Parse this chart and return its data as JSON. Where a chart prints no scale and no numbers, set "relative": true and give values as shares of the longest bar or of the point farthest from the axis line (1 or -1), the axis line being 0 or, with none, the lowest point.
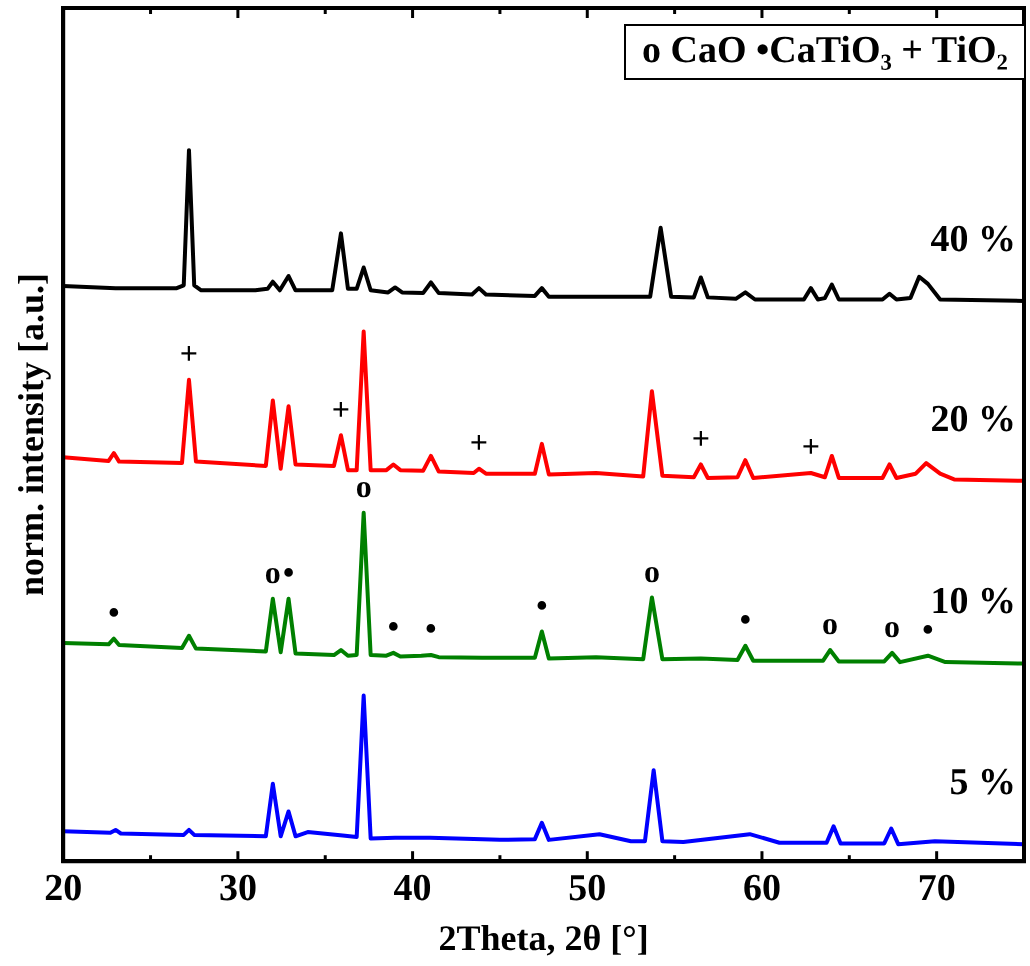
{
  "chart_data": {
    "type": "line",
    "relative": true,
    "xlabel": "2Theta, 2θ [°]",
    "ylabel": "norm. intensity [a.u.]",
    "xlim": [
      20,
      75
    ],
    "xticks": [
      20,
      {
        "value": 25,
        "label": null
      },
      30,
      {
        "value": 35,
        "label": null
      },
      40,
      {
        "value": 45,
        "label": null
      },
      50,
      {
        "value": 55,
        "label": null
      },
      60,
      {
        "value": 65,
        "label": null
      },
      70,
      {
        "value": 75,
        "label": null
      }
    ],
    "tick_labels": "x",
    "grid": false,
    "legend": false,
    "marker": "none",
    "line_style": "solid",
    "series": [
      {
        "name": "40 %",
        "color": "#000000",
        "x": [
          20,
          23,
          26.5,
          26.9,
          27.2,
          27.5,
          27.9,
          31,
          31.7,
          32.0,
          32.4,
          32.9,
          33.3,
          35.4,
          35.9,
          36.3,
          36.8,
          37.2,
          37.6,
          38.6,
          39.0,
          39.4,
          40.6,
          41.05,
          41.5,
          43.4,
          43.8,
          44.2,
          47.0,
          47.4,
          47.8,
          53.6,
          54.2,
          54.8,
          56.1,
          56.5,
          56.9,
          58.5,
          59.05,
          59.6,
          62.4,
          62.8,
          63.2,
          63.6,
          64.0,
          64.4,
          66.9,
          67.3,
          67.7,
          68.5,
          69.0,
          69.5,
          70.2,
          75
        ],
        "values": [
          0.809,
          0.806,
          0.806,
          0.81,
          1.0,
          0.81,
          0.803,
          0.803,
          0.805,
          0.815,
          0.803,
          0.823,
          0.803,
          0.803,
          0.883,
          0.805,
          0.805,
          0.835,
          0.803,
          0.8,
          0.807,
          0.8,
          0.799,
          0.814,
          0.799,
          0.797,
          0.806,
          0.797,
          0.795,
          0.806,
          0.794,
          0.794,
          0.891,
          0.794,
          0.793,
          0.821,
          0.793,
          0.791,
          0.8,
          0.79,
          0.79,
          0.806,
          0.79,
          0.792,
          0.811,
          0.79,
          0.79,
          0.798,
          0.79,
          0.792,
          0.822,
          0.812,
          0.79,
          0.788
        ]
      },
      {
        "name": "20 %",
        "color": "#ff0000",
        "x": [
          20,
          22.6,
          22.9,
          23.2,
          26.8,
          27.2,
          27.6,
          31.6,
          32.0,
          32.45,
          32.9,
          33.3,
          35.5,
          35.9,
          36.3,
          36.8,
          37.2,
          37.6,
          38.5,
          38.9,
          39.3,
          40.6,
          41.05,
          41.5,
          43.5,
          43.8,
          44.2,
          47.0,
          47.4,
          47.8,
          50.5,
          53.2,
          53.7,
          54.3,
          56.1,
          56.5,
          56.9,
          58.6,
          59.05,
          59.5,
          62.8,
          63.6,
          64.0,
          64.4,
          66.9,
          67.3,
          67.7,
          68.8,
          69.4,
          70.2,
          71,
          75
        ],
        "values": [
          0.568,
          0.563,
          0.574,
          0.562,
          0.56,
          0.677,
          0.562,
          0.556,
          0.648,
          0.552,
          0.64,
          0.558,
          0.556,
          0.599,
          0.55,
          0.55,
          0.745,
          0.55,
          0.55,
          0.558,
          0.55,
          0.549,
          0.57,
          0.548,
          0.546,
          0.552,
          0.545,
          0.545,
          0.587,
          0.544,
          0.546,
          0.541,
          0.661,
          0.542,
          0.54,
          0.558,
          0.539,
          0.54,
          0.564,
          0.539,
          0.546,
          0.54,
          0.57,
          0.539,
          0.539,
          0.558,
          0.539,
          0.545,
          0.56,
          0.545,
          0.537,
          0.535
        ]
      },
      {
        "name": "10 %",
        "color": "#008000",
        "x": [
          20,
          22.6,
          22.9,
          23.2,
          26.8,
          27.2,
          27.6,
          31.6,
          32.0,
          32.45,
          32.9,
          33.3,
          35.5,
          35.9,
          36.3,
          36.8,
          37.2,
          37.6,
          38.5,
          38.9,
          39.3,
          40.5,
          41.05,
          41.5,
          44,
          47.0,
          47.4,
          47.8,
          50.5,
          53.2,
          53.7,
          54.3,
          56.5,
          58.6,
          59.05,
          59.5,
          63.5,
          63.9,
          64.4,
          67.0,
          67.45,
          67.9,
          69.5,
          70.5,
          75
        ],
        "values": [
          0.307,
          0.305,
          0.313,
          0.304,
          0.3,
          0.317,
          0.299,
          0.295,
          0.369,
          0.294,
          0.369,
          0.292,
          0.29,
          0.297,
          0.289,
          0.29,
          0.49,
          0.29,
          0.289,
          0.293,
          0.288,
          0.289,
          0.29,
          0.287,
          0.286,
          0.286,
          0.323,
          0.285,
          0.287,
          0.284,
          0.371,
          0.284,
          0.285,
          0.283,
          0.303,
          0.282,
          0.282,
          0.297,
          0.281,
          0.281,
          0.293,
          0.28,
          0.289,
          0.28,
          0.278
        ]
      },
      {
        "name": "5 %",
        "color": "#0000ff",
        "x": [
          20,
          22.7,
          23.0,
          23.3,
          26.9,
          27.2,
          27.5,
          31.6,
          32.0,
          32.45,
          32.9,
          33.3,
          34,
          36,
          36.8,
          37.2,
          37.6,
          39,
          41,
          45,
          47.0,
          47.4,
          47.8,
          50.7,
          52.5,
          53.3,
          53.8,
          54.3,
          55.5,
          59.3,
          61,
          63.7,
          64.1,
          64.5,
          67.0,
          67.4,
          67.8,
          69.9,
          75
        ],
        "values": [
          0.042,
          0.04,
          0.044,
          0.039,
          0.037,
          0.044,
          0.037,
          0.035,
          0.109,
          0.035,
          0.07,
          0.035,
          0.041,
          0.036,
          0.034,
          0.233,
          0.032,
          0.033,
          0.033,
          0.03,
          0.031,
          0.054,
          0.03,
          0.038,
          0.028,
          0.028,
          0.128,
          0.028,
          0.027,
          0.038,
          0.026,
          0.026,
          0.049,
          0.025,
          0.025,
          0.046,
          0.024,
          0.028,
          0.024
        ]
      }
    ],
    "annotations": [
      "o CaO  •CaTiO₃ + TiO₂",
      {
        "text": "+",
        "x": 27.2,
        "y": 0.677
      },
      {
        "text": "+",
        "x": 35.9,
        "y": 0.599
      },
      {
        "text": "+",
        "x": 43.8,
        "y": 0.552
      },
      {
        "text": "+",
        "x": 56.5,
        "y": 0.558
      },
      {
        "text": "+",
        "x": 62.8,
        "y": 0.546
      },
      {
        "text": "o",
        "x": 37.2,
        "y": 0.49
      },
      {
        "text": "o",
        "x": 32.0,
        "y": 0.369
      },
      {
        "text": "•",
        "x": 32.9,
        "y": 0.369
      },
      {
        "text": "•",
        "x": 22.9,
        "y": 0.313
      },
      {
        "text": "•",
        "x": 38.9,
        "y": 0.293
      },
      {
        "text": "•",
        "x": 41.05,
        "y": 0.29
      },
      {
        "text": "•",
        "x": 47.4,
        "y": 0.323
      },
      {
        "text": "o",
        "x": 53.7,
        "y": 0.371
      },
      {
        "text": "•",
        "x": 59.05,
        "y": 0.303
      },
      {
        "text": "o",
        "x": 63.9,
        "y": 0.297
      },
      {
        "text": "o",
        "x": 67.45,
        "y": 0.293
      },
      {
        "text": "•",
        "x": 69.5,
        "y": 0.289
      }
    ]
  }
}
